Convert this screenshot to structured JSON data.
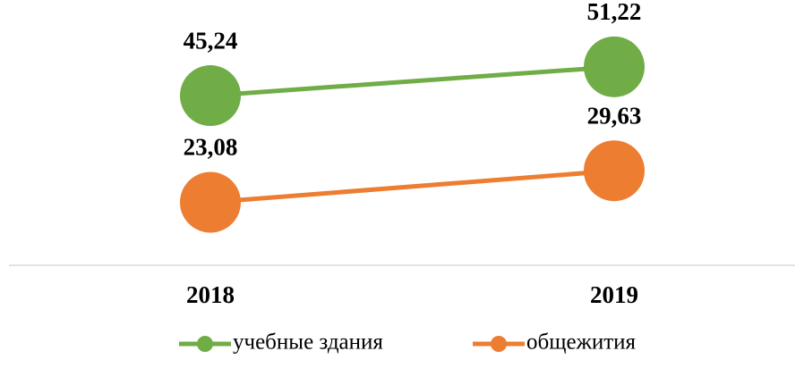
{
  "chart_data": {
    "type": "line",
    "categories": [
      "2018",
      "2019"
    ],
    "series": [
      {
        "name": "учебные здания",
        "color": "#70ad47",
        "values": [
          45.24,
          51.22
        ],
        "value_labels": [
          "45,24",
          "51,22"
        ]
      },
      {
        "name": "общежития",
        "color": "#ed7d31",
        "values": [
          23.08,
          29.63
        ],
        "value_labels": [
          "23,08",
          "29,63"
        ]
      }
    ],
    "ylim": [
      10,
      60
    ]
  }
}
